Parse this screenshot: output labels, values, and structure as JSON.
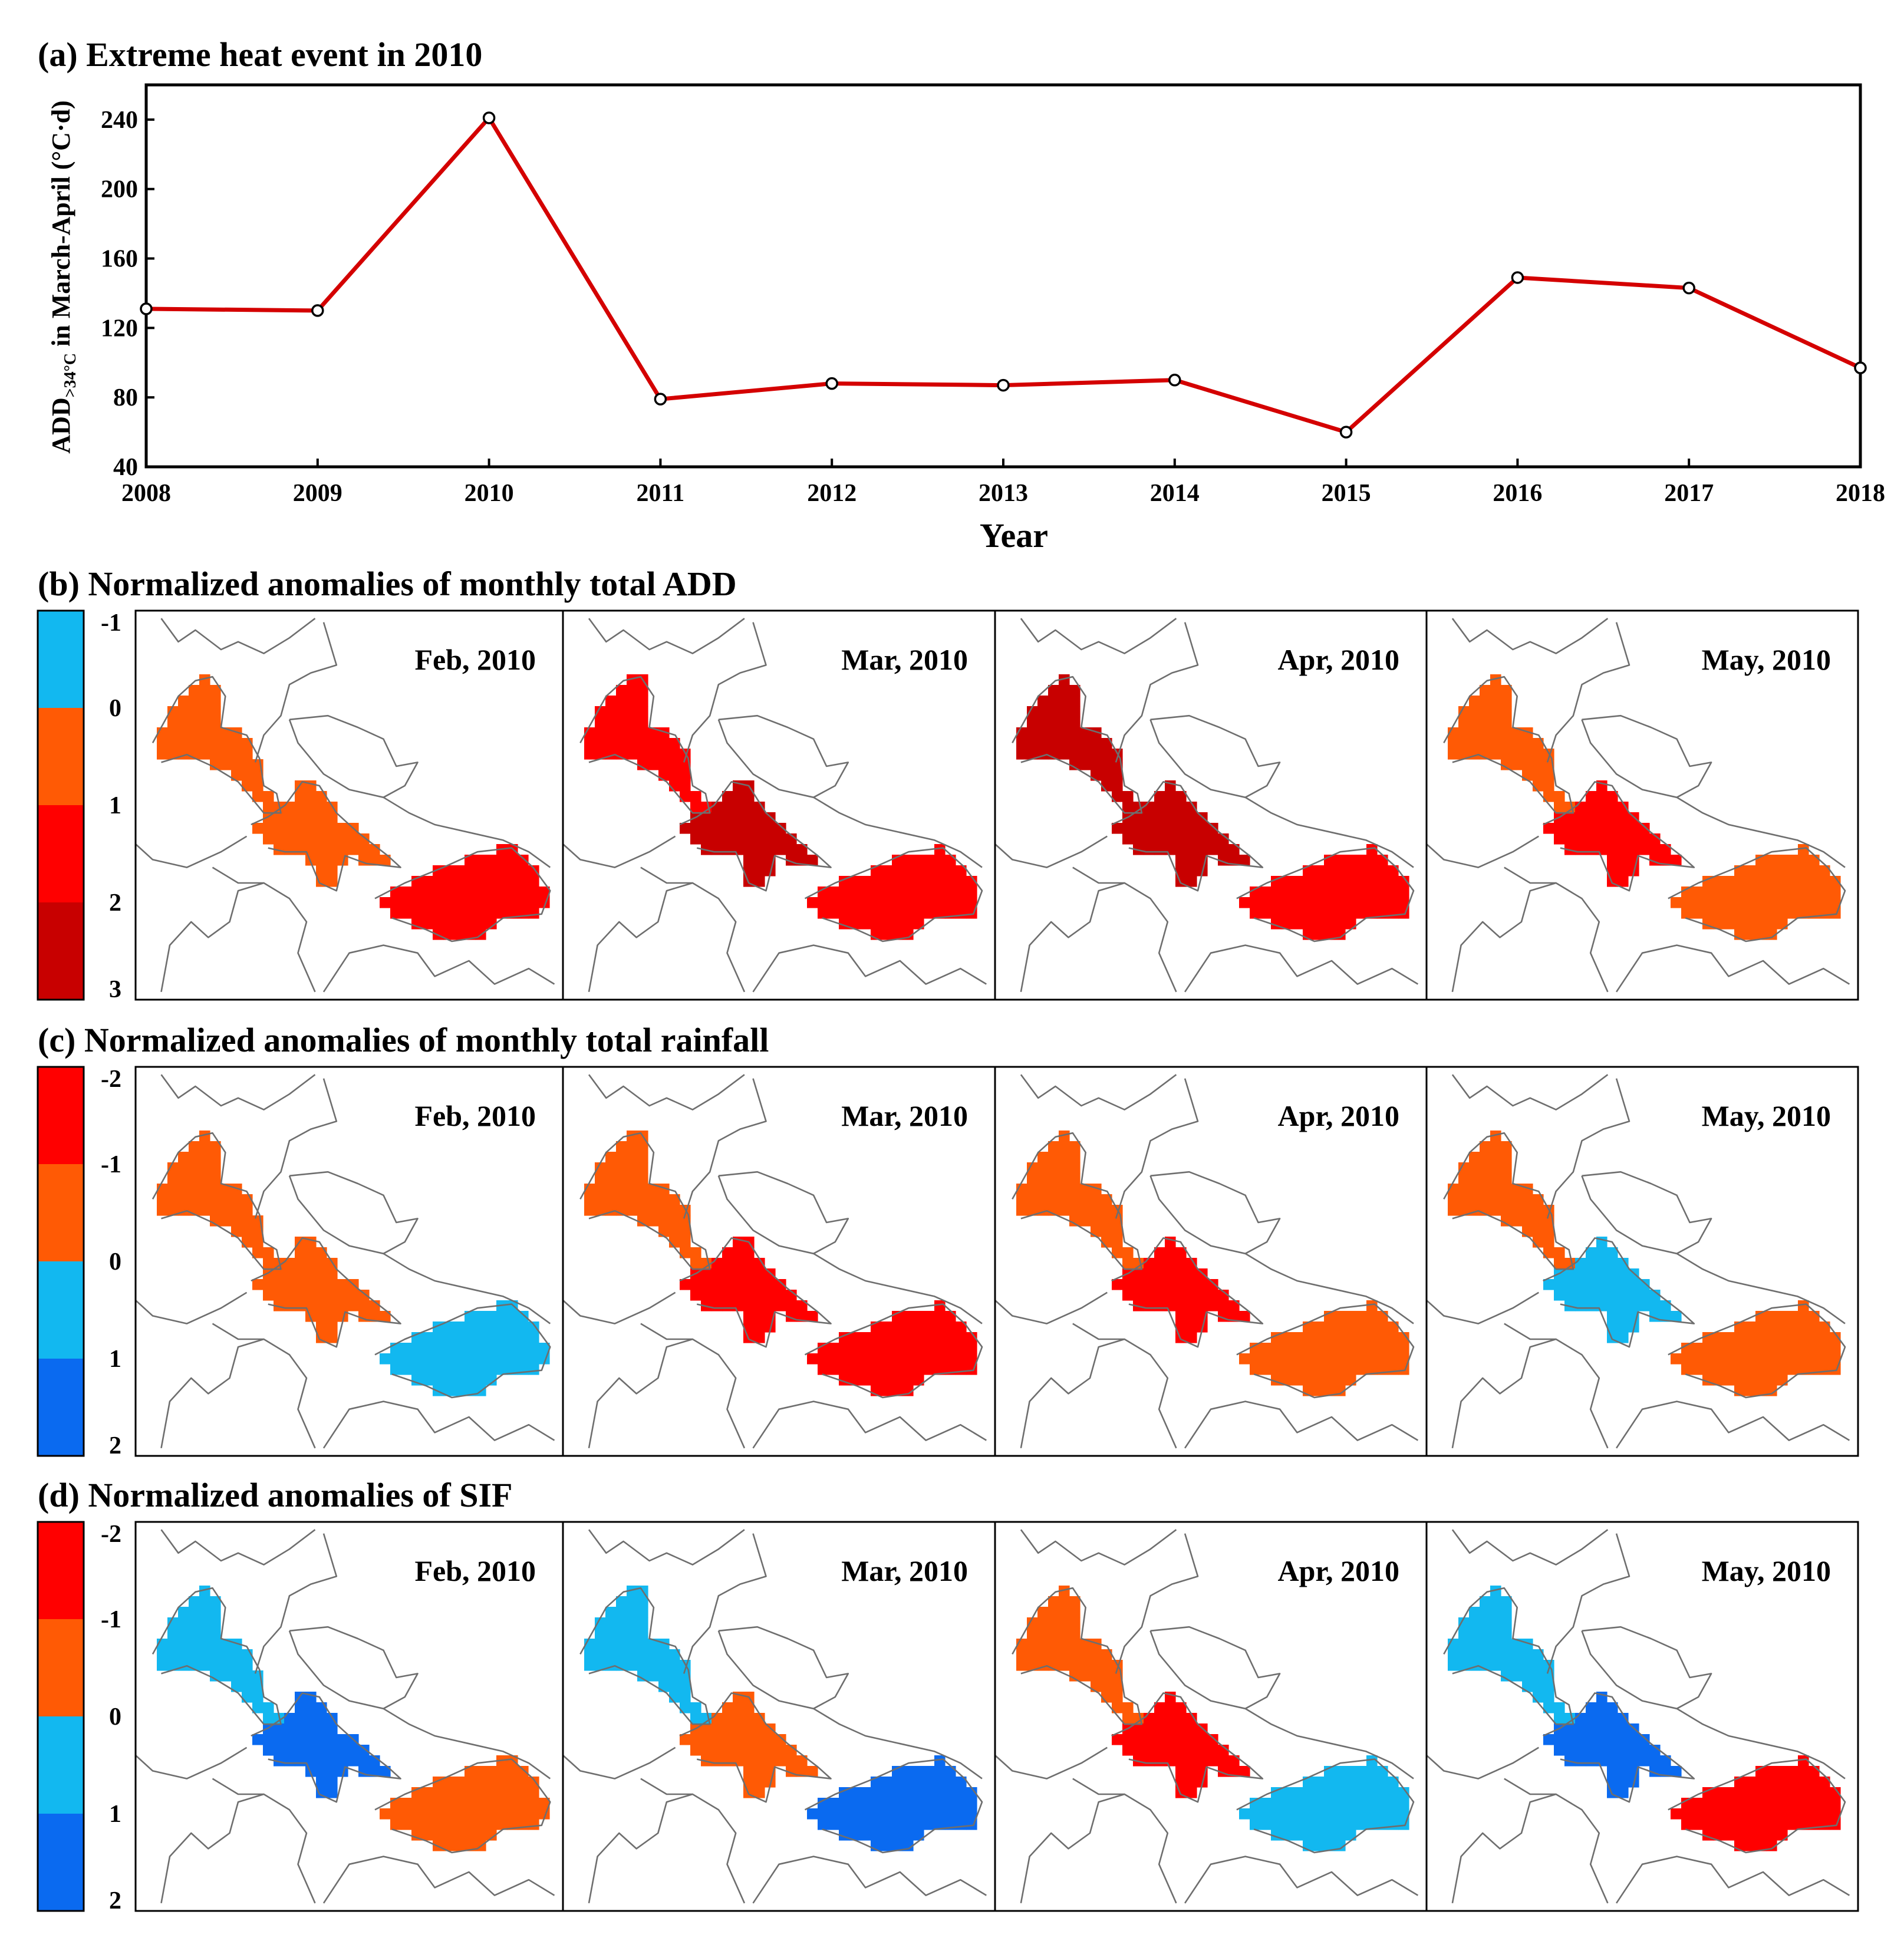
{
  "figure": {
    "colors": {
      "line": "#d40000",
      "border": "#000000",
      "boundary": "#6e6e6e",
      "map_bg": "#ffffff"
    }
  },
  "chart_data": [
    {
      "id": "a",
      "type": "line",
      "title": "(a) Extreme heat event in 2010",
      "xlabel": "Year",
      "ylabel_main": "ADD",
      "ylabel_sub": ">34°C",
      "ylabel_rest": " in March-April (°C·d)",
      "x": [
        2008,
        2009,
        2010,
        2011,
        2012,
        2013,
        2014,
        2015,
        2016,
        2017,
        2018
      ],
      "values": [
        131,
        130,
        241,
        79,
        88,
        87,
        90,
        60,
        149,
        143,
        97
      ],
      "xlim": [
        2008,
        2018
      ],
      "ylim": [
        40,
        260
      ],
      "yticks": [
        40,
        80,
        120,
        160,
        200,
        240
      ],
      "xticks": [
        "2008",
        "2009",
        "2010",
        "2011",
        "2012",
        "2013",
        "2014",
        "2015",
        "2016",
        "2017",
        "2018"
      ]
    },
    {
      "id": "b",
      "type": "heatmap",
      "title": "(b) Normalized anomalies of monthly total ADD",
      "colorbar": {
        "ticks": [
          "-1",
          "0",
          "1",
          "2",
          "3"
        ],
        "colors": [
          "#12b8f0",
          "#ff5a05",
          "#ff0000",
          "#c80000"
        ]
      },
      "panels": [
        {
          "label": "Feb, 2010",
          "dominant": [
            "#ff5a05",
            "#ff5a05",
            "#ff0000",
            "#12b8f0"
          ]
        },
        {
          "label": "Mar, 2010",
          "dominant": [
            "#ff0000",
            "#c80000",
            "#ff0000",
            "#ff5a05"
          ]
        },
        {
          "label": "Apr, 2010",
          "dominant": [
            "#c80000",
            "#c80000",
            "#ff0000",
            "#ff5a05"
          ]
        },
        {
          "label": "May, 2010",
          "dominant": [
            "#ff5a05",
            "#ff0000",
            "#ff5a05",
            "#12b8f0"
          ]
        }
      ]
    },
    {
      "id": "c",
      "type": "heatmap",
      "title": "(c) Normalized anomalies of monthly total rainfall",
      "colorbar": {
        "ticks": [
          "-2",
          "-1",
          "0",
          "1",
          "2"
        ],
        "colors": [
          "#ff0000",
          "#ff5a05",
          "#12b8f0",
          "#0a6af0"
        ]
      },
      "panels": [
        {
          "label": "Feb, 2010",
          "dominant": [
            "#ff5a05",
            "#ff5a05",
            "#12b8f0",
            "#ff5a05"
          ]
        },
        {
          "label": "Mar, 2010",
          "dominant": [
            "#ff5a05",
            "#ff0000",
            "#ff0000",
            "#ff5a05"
          ]
        },
        {
          "label": "Apr, 2010",
          "dominant": [
            "#ff5a05",
            "#ff0000",
            "#ff5a05",
            "#12b8f0"
          ]
        },
        {
          "label": "May, 2010",
          "dominant": [
            "#ff5a05",
            "#12b8f0",
            "#ff5a05",
            "#0a6af0"
          ]
        }
      ]
    },
    {
      "id": "d",
      "type": "heatmap",
      "title": "(d) Normalized anomalies of SIF",
      "colorbar": {
        "ticks": [
          "-2",
          "-1",
          "0",
          "1",
          "2"
        ],
        "colors": [
          "#ff0000",
          "#ff5a05",
          "#12b8f0",
          "#0a6af0"
        ]
      },
      "panels": [
        {
          "label": "Feb, 2010",
          "dominant": [
            "#12b8f0",
            "#0a6af0",
            "#ff5a05",
            "#12b8f0"
          ]
        },
        {
          "label": "Mar, 2010",
          "dominant": [
            "#12b8f0",
            "#ff5a05",
            "#0a6af0",
            "#ff5a05"
          ]
        },
        {
          "label": "Apr, 2010",
          "dominant": [
            "#ff5a05",
            "#ff0000",
            "#12b8f0",
            "#0a6af0"
          ]
        },
        {
          "label": "May, 2010",
          "dominant": [
            "#12b8f0",
            "#0a6af0",
            "#ff0000",
            "#ff5a05"
          ]
        }
      ]
    }
  ]
}
